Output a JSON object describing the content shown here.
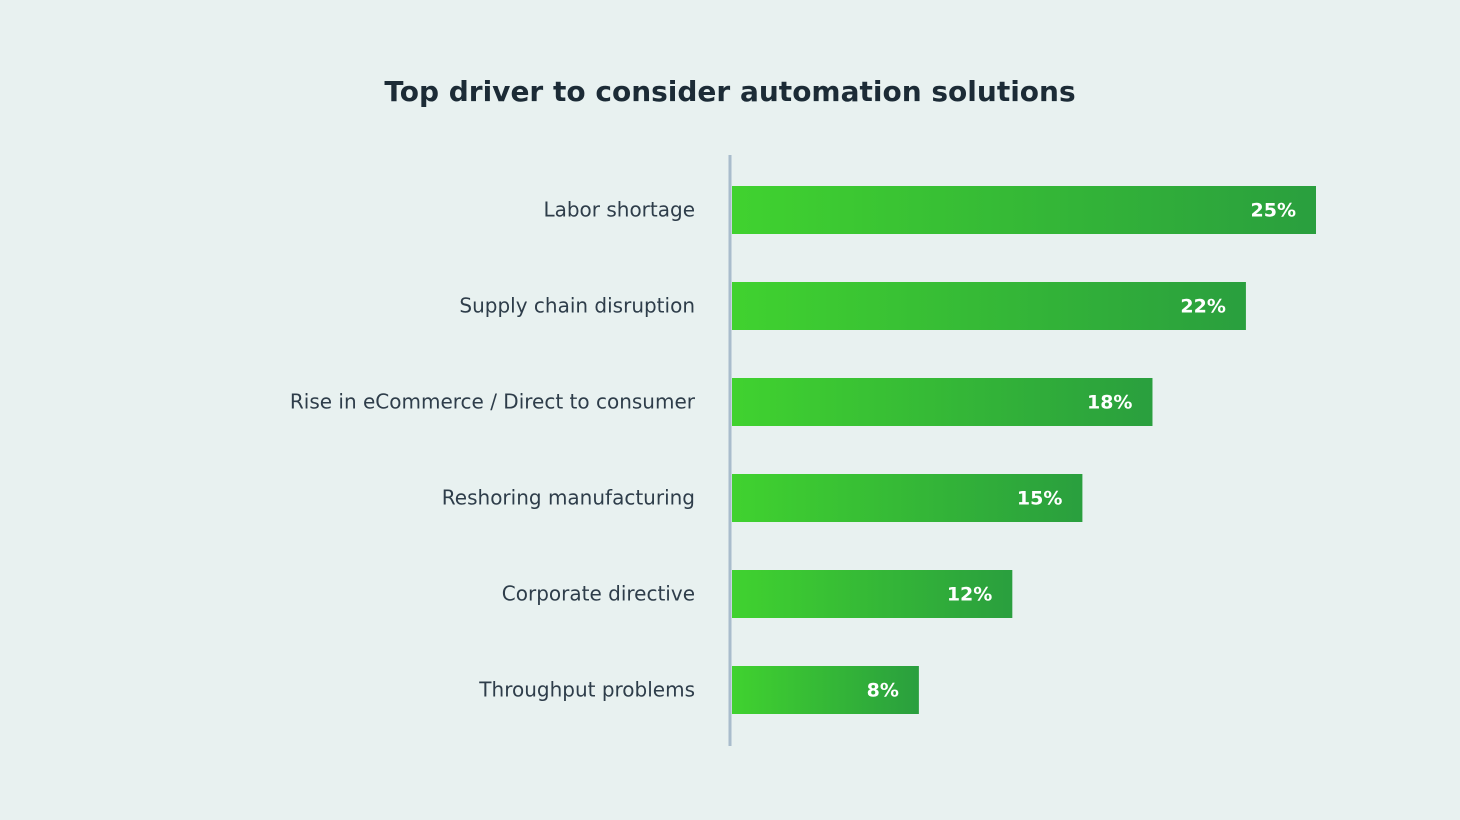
{
  "chart_data": {
    "type": "bar",
    "orientation": "horizontal",
    "title": "Top driver to consider automation solutions",
    "categories": [
      "Labor shortage",
      "Supply chain disruption",
      "Rise in eCommerce / Direct to consumer",
      "Reshoring manufacturing",
      "Corporate directive",
      "Throughput problems"
    ],
    "values": [
      25,
      22,
      18,
      15,
      12,
      8
    ],
    "value_labels": [
      "25%",
      "22%",
      "18%",
      "15%",
      "12%",
      "8%"
    ],
    "color": [
      "#40d22f",
      "#2a9f3e"
    ]
  }
}
